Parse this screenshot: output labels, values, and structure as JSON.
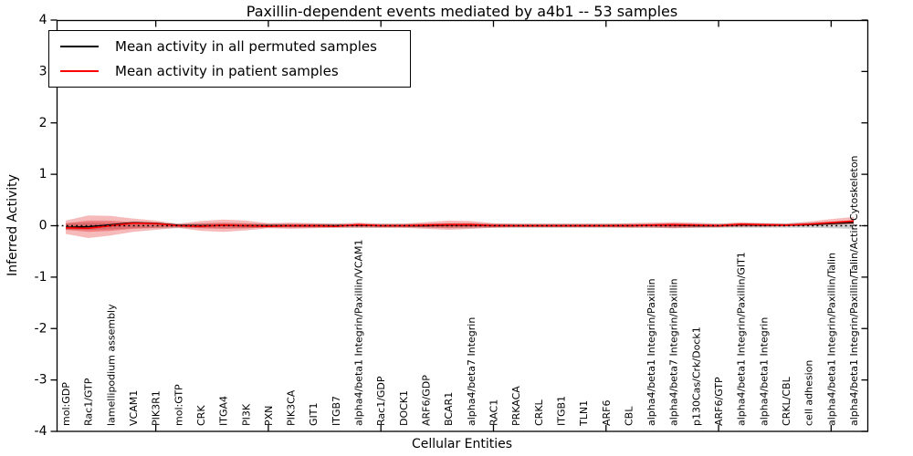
{
  "figure": {
    "title": "Paxillin-dependent events mediated by a4b1 -- 53 samples",
    "xlabel": "Cellular Entities",
    "ylabel": "Inferred Activity"
  },
  "legend": {
    "items": [
      {
        "label": "Mean activity in all permuted samples",
        "color": "#000000"
      },
      {
        "label": "Mean activity in patient samples",
        "color": "#ff0000"
      }
    ]
  },
  "chart_data": {
    "type": "line",
    "title": "Paxillin-dependent events mediated by a4b1 -- 53 samples",
    "xlabel": "Cellular Entities",
    "ylabel": "Inferred Activity",
    "ylim": [
      -4,
      4
    ],
    "yticks": [
      -4,
      -3,
      -2,
      -1,
      0,
      1,
      2,
      3,
      4
    ],
    "xtick_marks_at_indices": [
      4,
      9,
      14,
      19,
      24,
      29,
      34
    ],
    "grid": false,
    "legend_position": "upper left",
    "zero_line": {
      "show": true,
      "style": "dotted",
      "color": "#000000"
    },
    "categories": [
      "mol:GDP",
      "Rac1/GTP",
      "lamellipodium assembly",
      "VCAM1",
      "PIK3R1",
      "mol:GTP",
      "CRK",
      "ITGA4",
      "PI3K",
      "PXN",
      "PIK3CA",
      "GIT1",
      "ITGB7",
      "alpha4/beta1 Integrin/Paxillin/VCAM1",
      "Rac1/GDP",
      "DOCK1",
      "ARF6/GDP",
      "BCAR1",
      "alpha4/beta7 Integrin",
      "RAC1",
      "PRKACA",
      "CRKL",
      "ITGB1",
      "TLN1",
      "ARF6",
      "CBL",
      "alpha4/beta1 Integrin/Paxillin",
      "alpha4/beta7 Integrin/Paxillin",
      "p130Cas/Crk/Dock1",
      "ARF6/GTP",
      "alpha4/beta1 Integrin/Paxillin/GIT1",
      "alpha4/beta1 Integrin",
      "CRKL/CBL",
      "cell adhesion",
      "alpha4/beta1 Integrin/Paxillin/Talin",
      "alpha4/beta1 Integrin/Paxillin/Talin/Actin Cytoskeleton"
    ],
    "series": [
      {
        "name": "Mean activity in all permuted samples",
        "color": "#000000",
        "values": [
          -0.03,
          -0.02,
          0.02,
          0.06,
          0.05,
          0.01,
          0.0,
          0.01,
          0.0,
          0.0,
          0.0,
          0.0,
          0.0,
          0.01,
          0.0,
          0.0,
          0.0,
          0.01,
          0.01,
          0.0,
          0.0,
          0.0,
          0.0,
          0.0,
          0.0,
          0.0,
          0.01,
          0.01,
          0.0,
          0.0,
          0.02,
          0.01,
          0.01,
          0.02,
          0.04,
          0.06
        ]
      },
      {
        "name": "Mean activity in patient samples",
        "color": "#ff0000",
        "values": [
          -0.04,
          -0.05,
          0.0,
          0.05,
          0.04,
          0.0,
          -0.01,
          0.01,
          0.0,
          -0.01,
          0.0,
          0.0,
          -0.01,
          0.02,
          0.0,
          0.0,
          0.01,
          0.02,
          0.02,
          0.0,
          0.0,
          0.0,
          0.0,
          0.0,
          0.0,
          0.0,
          0.01,
          0.02,
          0.01,
          0.0,
          0.03,
          0.02,
          0.01,
          0.03,
          0.06,
          0.09
        ]
      }
    ],
    "bands": [
      {
        "name": "permuted-sample-range",
        "color": "#888888",
        "opacity": 0.4,
        "upper": [
          0.05,
          0.06,
          0.06,
          0.05,
          0.05,
          0.04,
          0.04,
          0.05,
          0.04,
          0.04,
          0.04,
          0.04,
          0.04,
          0.04,
          0.04,
          0.04,
          0.04,
          0.05,
          0.05,
          0.04,
          0.04,
          0.04,
          0.04,
          0.04,
          0.04,
          0.04,
          0.04,
          0.05,
          0.04,
          0.04,
          0.05,
          0.05,
          0.05,
          0.06,
          0.08,
          0.1
        ],
        "lower": [
          -0.08,
          -0.08,
          -0.07,
          -0.05,
          -0.05,
          -0.05,
          -0.05,
          -0.05,
          -0.05,
          -0.04,
          -0.04,
          -0.04,
          -0.04,
          -0.04,
          -0.04,
          -0.04,
          -0.04,
          -0.05,
          -0.05,
          -0.04,
          -0.04,
          -0.04,
          -0.04,
          -0.04,
          -0.04,
          -0.04,
          -0.04,
          -0.05,
          -0.04,
          -0.04,
          -0.04,
          -0.04,
          -0.04,
          -0.04,
          -0.05,
          -0.06
        ]
      },
      {
        "name": "patient-sample-range-outer",
        "color": "#e41a1c",
        "opacity": 0.3,
        "upper": [
          0.1,
          0.2,
          0.19,
          0.14,
          0.1,
          0.04,
          0.09,
          0.12,
          0.1,
          0.05,
          0.06,
          0.05,
          0.04,
          0.06,
          0.04,
          0.04,
          0.07,
          0.1,
          0.09,
          0.05,
          0.04,
          0.04,
          0.04,
          0.04,
          0.04,
          0.05,
          0.06,
          0.07,
          0.06,
          0.04,
          0.07,
          0.05,
          0.04,
          0.08,
          0.13,
          0.17
        ],
        "lower": [
          -0.16,
          -0.24,
          -0.19,
          -0.12,
          -0.08,
          -0.04,
          -0.1,
          -0.12,
          -0.09,
          -0.05,
          -0.06,
          -0.05,
          -0.04,
          -0.04,
          -0.04,
          -0.04,
          -0.06,
          -0.08,
          -0.06,
          -0.04,
          -0.03,
          -0.03,
          -0.03,
          -0.03,
          -0.03,
          -0.04,
          -0.04,
          -0.05,
          -0.04,
          -0.03,
          -0.02,
          -0.02,
          -0.01,
          0.0,
          0.01,
          0.03
        ]
      },
      {
        "name": "patient-sample-range-inner",
        "color": "#e41a1c",
        "opacity": 0.35,
        "upper": [
          0.05,
          0.1,
          0.1,
          0.07,
          0.05,
          0.02,
          0.05,
          0.06,
          0.05,
          0.03,
          0.03,
          0.03,
          0.02,
          0.03,
          0.02,
          0.02,
          0.04,
          0.05,
          0.05,
          0.03,
          0.02,
          0.02,
          0.02,
          0.02,
          0.02,
          0.03,
          0.03,
          0.04,
          0.03,
          0.02,
          0.04,
          0.03,
          0.02,
          0.04,
          0.07,
          0.09
        ],
        "lower": [
          -0.08,
          -0.12,
          -0.1,
          -0.06,
          -0.04,
          -0.02,
          -0.05,
          -0.06,
          -0.05,
          -0.03,
          -0.03,
          -0.03,
          -0.02,
          -0.02,
          -0.02,
          -0.02,
          -0.03,
          -0.04,
          -0.03,
          -0.02,
          -0.02,
          -0.02,
          -0.02,
          -0.02,
          -0.02,
          -0.02,
          -0.02,
          -0.03,
          -0.02,
          -0.02,
          -0.01,
          -0.01,
          -0.01,
          0.01,
          0.03,
          0.05
        ]
      }
    ]
  }
}
